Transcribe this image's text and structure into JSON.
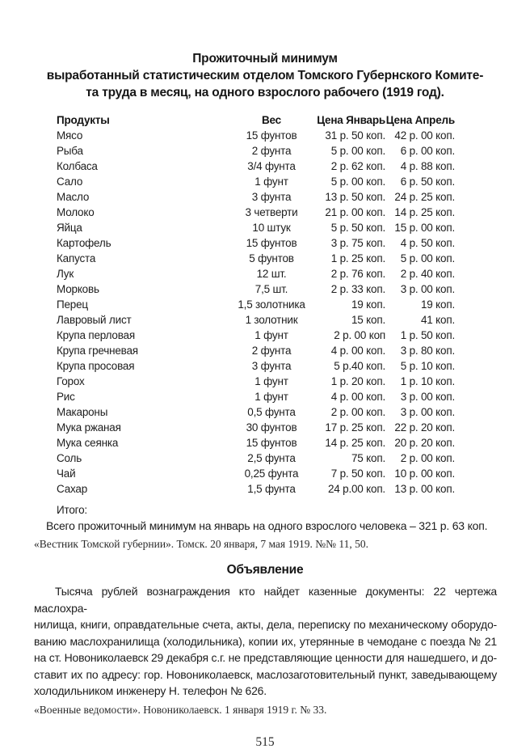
{
  "title": {
    "lines": [
      "Прожиточный минимум",
      "выработанный статистическим отделом Томского Губернского Комите-",
      "та труда в месяц, на одного взрослого рабочего (1919 год)."
    ]
  },
  "table": {
    "headers": [
      "Продукты",
      "Вес",
      "Цена Январь",
      "Цена Апрель"
    ],
    "rows": [
      {
        "product": "Мясо",
        "weight": "15 фунтов",
        "jan": "31 р. 50 коп.",
        "apr": "42 р. 00 коп."
      },
      {
        "product": "Рыба",
        "weight": "2 фунта",
        "jan": "5 р. 00 коп.",
        "apr": "6 р. 00 коп."
      },
      {
        "product": "Колбаса",
        "weight": "3/4 фунта",
        "jan": "2 р. 62 коп.",
        "apr": "4 р. 88 коп."
      },
      {
        "product": "Сало",
        "weight": "1 фунт",
        "jan": "5 р. 00 коп.",
        "apr": "6 р. 50 коп."
      },
      {
        "product": "Масло",
        "weight": "3 фунта",
        "jan": "13 р. 50 коп.",
        "apr": "24 р. 25 коп."
      },
      {
        "product": "Молоко",
        "weight": "3 четверти",
        "jan": "21 р. 00 коп.",
        "apr": "14 р. 25 коп."
      },
      {
        "product": "Яйца",
        "weight": "10 штук",
        "jan": "5 р. 50 коп.",
        "apr": "15 р. 00 коп."
      },
      {
        "product": "Картофель",
        "weight": "15 фунтов",
        "jan": "3 р. 75 коп.",
        "apr": "4 р. 50 коп."
      },
      {
        "product": "Капуста",
        "weight": "5 фунтов",
        "jan": "1 р. 25 коп.",
        "apr": "5 р. 00 коп."
      },
      {
        "product": "Лук",
        "weight": "12 шт.",
        "jan": "2 р. 76 коп.",
        "apr": "2 р. 40 коп."
      },
      {
        "product": "Морковь",
        "weight": "7,5 шт.",
        "jan": "2 р. 33 коп.",
        "apr": "3 р. 00 коп."
      },
      {
        "product": "Перец",
        "weight": "1,5 золотника",
        "jan": "19 коп.",
        "apr": "19 коп."
      },
      {
        "product": "Лавровый лист",
        "weight": "1 золотник",
        "jan": "15 коп.",
        "apr": "41 коп."
      },
      {
        "product": "Крупа перловая",
        "weight": "1 фунт",
        "jan": "2 р. 00 коп",
        "apr": "1 р. 50 коп."
      },
      {
        "product": "Крупа гречневая",
        "weight": "2 фунта",
        "jan": "4 р. 00 коп.",
        "apr": "3 р. 80 коп."
      },
      {
        "product": "Крупа просовая",
        "weight": "3 фунта",
        "jan": "5 р.40 коп.",
        "apr": "5 р. 10 коп."
      },
      {
        "product": "Горох",
        "weight": "1 фунт",
        "jan": "1 р. 20 коп.",
        "apr": "1 р. 10 коп."
      },
      {
        "product": "Рис",
        "weight": "1 фунт",
        "jan": "4 р. 00 коп.",
        "apr": "3 р. 00 коп."
      },
      {
        "product": "Макароны",
        "weight": "0,5 фунта",
        "jan": "2 р. 00 коп.",
        "apr": "3 р. 00 коп."
      },
      {
        "product": "Мука ржаная",
        "weight": "30 фунтов",
        "jan": "17 р. 25 коп.",
        "apr": "22 р. 20 коп."
      },
      {
        "product": "Мука сеянка",
        "weight": "15 фунтов",
        "jan": "14 р. 25 коп.",
        "apr": "20 р. 20 коп."
      },
      {
        "product": "Соль",
        "weight": "2,5 фунта",
        "jan": "75 коп.",
        "apr": "2 р. 00 коп."
      },
      {
        "product": "Чай",
        "weight": "0,25 фунта",
        "jan": "7 р. 50 коп.",
        "apr": "10 р. 00 коп."
      },
      {
        "product": "Сахар",
        "weight": "1,5 фунта",
        "jan": "24 р.00 коп.",
        "apr": "13 р. 00 коп."
      }
    ],
    "totals_label": "Итого:",
    "totals_line": "Всего прожиточный минимум на январь на одного взрослого человека – 321 р. 63 коп."
  },
  "citation_tomsk": "«Вестник Томской губернии». Томск. 20 января, 7 мая 1919. №№ 11, 50.",
  "announcement": {
    "heading": "Объявление",
    "lines": [
      "Тысяча рублей вознаграждения кто найдет казенные документы: 22 чертежа маслохра-",
      "нилища, книги, оправдательные счета, акты, дела, переписку по механическому оборудо-",
      "ванию маслохранилища (холодильника), копии их, утерянные в чемодане с поезда № 21",
      "на ст. Новониколаевск 29 декабря с.г. не представляющие ценности для нашедшего, и до-",
      "ставит их по адресу: гор. Новониколаевск, маслозаготовительный пункт, заведывающему",
      "холодильником инженеру Н. телефон № 626."
    ],
    "citation": "«Военные ведомости». Новониколаевск. 1 января 1919 г. № 33."
  },
  "page_number": "515"
}
